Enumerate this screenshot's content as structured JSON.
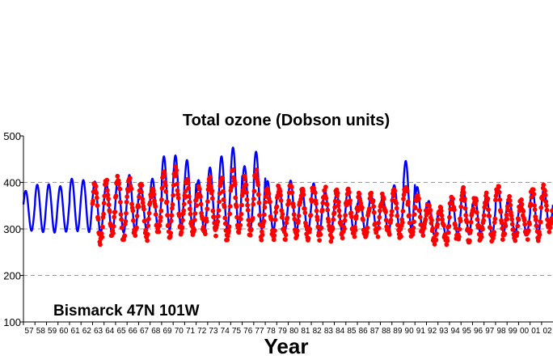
{
  "chart_data": {
    "type": "line",
    "title": "Total ozone (Dobson units)",
    "annotation": "Bismarck  47N 101W",
    "xlabel": "Year",
    "ylabel": "",
    "xlim": [
      1957,
      2002.99
    ],
    "ylim": [
      100,
      500
    ],
    "yticks": [
      100,
      200,
      300,
      400,
      500
    ],
    "xtick_labels": [
      "57",
      "58",
      "59",
      "60",
      "61",
      "62",
      "63",
      "64",
      "65",
      "66",
      "67",
      "68",
      "69",
      "70",
      "71",
      "72",
      "73",
      "74",
      "75",
      "76",
      "77",
      "78",
      "79",
      "80",
      "81",
      "82",
      "83",
      "84",
      "85",
      "86",
      "87",
      "88",
      "89",
      "90",
      "91",
      "92",
      "93",
      "94",
      "95",
      "96",
      "97",
      "98",
      "99",
      "00",
      "01",
      "02"
    ],
    "grid": {
      "horizontal_dashed_at": [
        200,
        300,
        400
      ]
    },
    "colors": {
      "line": "#0000ff",
      "points": "#ff0000",
      "axis": "#000000",
      "grid": "#999999"
    },
    "series": [
      {
        "kind": "line",
        "annual_cycle": [
          {
            "year": 1957,
            "max": 382,
            "min": 296
          },
          {
            "year": 1958,
            "max": 395,
            "min": 293
          },
          {
            "year": 1959,
            "max": 396,
            "min": 292
          },
          {
            "year": 1960,
            "max": 392,
            "min": 294
          },
          {
            "year": 1961,
            "max": 408,
            "min": 295
          },
          {
            "year": 1962,
            "max": 405,
            "min": 293
          },
          {
            "year": 1963,
            "max": 402,
            "min": 290
          },
          {
            "year": 1964,
            "max": 398,
            "min": 288
          },
          {
            "year": 1965,
            "max": 405,
            "min": 292
          },
          {
            "year": 1966,
            "max": 416,
            "min": 295
          },
          {
            "year": 1967,
            "max": 390,
            "min": 298
          },
          {
            "year": 1968,
            "max": 408,
            "min": 300
          },
          {
            "year": 1969,
            "max": 456,
            "min": 298
          },
          {
            "year": 1970,
            "max": 458,
            "min": 300
          },
          {
            "year": 1971,
            "max": 448,
            "min": 298
          },
          {
            "year": 1972,
            "max": 405,
            "min": 297
          },
          {
            "year": 1973,
            "max": 432,
            "min": 300
          },
          {
            "year": 1974,
            "max": 456,
            "min": 300
          },
          {
            "year": 1975,
            "max": 475,
            "min": 298
          },
          {
            "year": 1976,
            "max": 435,
            "min": 300
          },
          {
            "year": 1977,
            "max": 466,
            "min": 300
          },
          {
            "year": 1978,
            "max": 403,
            "min": 295
          },
          {
            "year": 1979,
            "max": 392,
            "min": 296
          },
          {
            "year": 1980,
            "max": 404,
            "min": 293
          },
          {
            "year": 1981,
            "max": 382,
            "min": 292
          },
          {
            "year": 1982,
            "max": 398,
            "min": 290
          },
          {
            "year": 1983,
            "max": 381,
            "min": 292
          },
          {
            "year": 1984,
            "max": 378,
            "min": 292
          },
          {
            "year": 1985,
            "max": 386,
            "min": 292
          },
          {
            "year": 1986,
            "max": 372,
            "min": 294
          },
          {
            "year": 1987,
            "max": 372,
            "min": 293
          },
          {
            "year": 1988,
            "max": 368,
            "min": 293
          },
          {
            "year": 1989,
            "max": 394,
            "min": 294
          },
          {
            "year": 1990,
            "max": 446,
            "min": 297
          },
          {
            "year": 1991,
            "max": 390,
            "min": 290
          },
          {
            "year": 1992,
            "max": 360,
            "min": 285
          },
          {
            "year": 1993,
            "max": 344,
            "min": 287
          },
          {
            "year": 1994,
            "max": 370,
            "min": 288
          },
          {
            "year": 1995,
            "max": 388,
            "min": 288
          },
          {
            "year": 1996,
            "max": 368,
            "min": 290
          },
          {
            "year": 1997,
            "max": 370,
            "min": 288
          },
          {
            "year": 1998,
            "max": 392,
            "min": 292
          },
          {
            "year": 1999,
            "max": 360,
            "min": 290
          },
          {
            "year": 2000,
            "max": 356,
            "min": 290
          },
          {
            "year": 2001,
            "max": 386,
            "min": 289
          },
          {
            "year": 2002,
            "max": 386,
            "min": 300
          }
        ]
      },
      {
        "kind": "scatter",
        "x_range": [
          1963.0,
          2002.95
        ],
        "annual_cycle": [
          {
            "year": 1963,
            "max": 392,
            "min": 272
          },
          {
            "year": 1964,
            "max": 400,
            "min": 286
          },
          {
            "year": 1965,
            "max": 410,
            "min": 282
          },
          {
            "year": 1966,
            "max": 408,
            "min": 288
          },
          {
            "year": 1967,
            "max": 392,
            "min": 284
          },
          {
            "year": 1968,
            "max": 385,
            "min": 296
          },
          {
            "year": 1969,
            "max": 415,
            "min": 290
          },
          {
            "year": 1970,
            "max": 425,
            "min": 292
          },
          {
            "year": 1971,
            "max": 405,
            "min": 290
          },
          {
            "year": 1972,
            "max": 382,
            "min": 292
          },
          {
            "year": 1973,
            "max": 402,
            "min": 292
          },
          {
            "year": 1974,
            "max": 410,
            "min": 278
          },
          {
            "year": 1975,
            "max": 420,
            "min": 292
          },
          {
            "year": 1976,
            "max": 402,
            "min": 290
          },
          {
            "year": 1977,
            "max": 420,
            "min": 286
          },
          {
            "year": 1978,
            "max": 392,
            "min": 286
          },
          {
            "year": 1979,
            "max": 392,
            "min": 285
          },
          {
            "year": 1980,
            "max": 395,
            "min": 288
          },
          {
            "year": 1981,
            "max": 378,
            "min": 286
          },
          {
            "year": 1982,
            "max": 390,
            "min": 285
          },
          {
            "year": 1983,
            "max": 382,
            "min": 285
          },
          {
            "year": 1984,
            "max": 375,
            "min": 288
          },
          {
            "year": 1985,
            "max": 378,
            "min": 288
          },
          {
            "year": 1986,
            "max": 370,
            "min": 285
          },
          {
            "year": 1987,
            "max": 372,
            "min": 288
          },
          {
            "year": 1988,
            "max": 365,
            "min": 290
          },
          {
            "year": 1989,
            "max": 378,
            "min": 287
          },
          {
            "year": 1990,
            "max": 392,
            "min": 282
          },
          {
            "year": 1991,
            "max": 368,
            "min": 288
          },
          {
            "year": 1992,
            "max": 352,
            "min": 275
          },
          {
            "year": 1993,
            "max": 345,
            "min": 274
          },
          {
            "year": 1994,
            "max": 365,
            "min": 280
          },
          {
            "year": 1995,
            "max": 380,
            "min": 282
          },
          {
            "year": 1996,
            "max": 365,
            "min": 278
          },
          {
            "year": 1997,
            "max": 368,
            "min": 280
          },
          {
            "year": 1998,
            "max": 388,
            "min": 283
          },
          {
            "year": 1999,
            "max": 360,
            "min": 280
          },
          {
            "year": 2000,
            "max": 355,
            "min": 282
          },
          {
            "year": 2001,
            "max": 382,
            "min": 282
          },
          {
            "year": 2002,
            "max": 385,
            "min": 300
          }
        ]
      }
    ]
  }
}
